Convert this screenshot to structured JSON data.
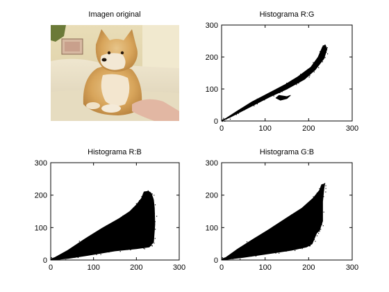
{
  "image_panel": {
    "title": "Imagen original"
  },
  "chart_data": [
    {
      "type": "scatter",
      "title": "Histograma R:G",
      "xlim": [
        0,
        300
      ],
      "ylim": [
        0,
        300
      ],
      "xticks": [
        0,
        100,
        200,
        300
      ],
      "yticks": [
        0,
        100,
        200,
        300
      ],
      "grid": false,
      "outline": [
        [
          0,
          0
        ],
        [
          20,
          12
        ],
        [
          60,
          40
        ],
        [
          110,
          75
        ],
        [
          150,
          100
        ],
        [
          190,
          130
        ],
        [
          215,
          160
        ],
        [
          235,
          195
        ],
        [
          242,
          225
        ],
        [
          238,
          238
        ],
        [
          232,
          232
        ],
        [
          222,
          200
        ],
        [
          205,
          168
        ],
        [
          175,
          138
        ],
        [
          145,
          113
        ],
        [
          110,
          88
        ],
        [
          70,
          60
        ],
        [
          35,
          30
        ],
        [
          10,
          8
        ],
        [
          0,
          2
        ]
      ],
      "cluster": [
        [
          132,
          80
        ],
        [
          150,
          76
        ],
        [
          158,
          80
        ],
        [
          150,
          70
        ],
        [
          135,
          65
        ],
        [
          125,
          72
        ]
      ]
    },
    {
      "type": "scatter",
      "title": "Histograma R:B",
      "xlim": [
        0,
        300
      ],
      "ylim": [
        0,
        300
      ],
      "xticks": [
        0,
        100,
        200,
        300
      ],
      "yticks": [
        0,
        100,
        200,
        300
      ],
      "grid": false,
      "outline": [
        [
          0,
          0
        ],
        [
          40,
          5
        ],
        [
          90,
          15
        ],
        [
          150,
          28
        ],
        [
          200,
          35
        ],
        [
          230,
          40
        ],
        [
          240,
          55
        ],
        [
          243,
          110
        ],
        [
          242,
          160
        ],
        [
          240,
          185
        ],
        [
          235,
          205
        ],
        [
          228,
          212
        ],
        [
          218,
          210
        ],
        [
          212,
          190
        ],
        [
          200,
          170
        ],
        [
          185,
          150
        ],
        [
          160,
          128
        ],
        [
          120,
          98
        ],
        [
          80,
          65
        ],
        [
          40,
          30
        ],
        [
          10,
          8
        ],
        [
          0,
          3
        ]
      ]
    },
    {
      "type": "scatter",
      "title": "Histograma G:B",
      "xlim": [
        0,
        300
      ],
      "ylim": [
        0,
        300
      ],
      "xticks": [
        0,
        100,
        200,
        300
      ],
      "yticks": [
        0,
        100,
        200,
        300
      ],
      "grid": false,
      "outline": [
        [
          0,
          0
        ],
        [
          50,
          8
        ],
        [
          110,
          20
        ],
        [
          160,
          30
        ],
        [
          195,
          40
        ],
        [
          208,
          50
        ],
        [
          218,
          82
        ],
        [
          225,
          92
        ],
        [
          232,
          120
        ],
        [
          232,
          180
        ],
        [
          235,
          220
        ],
        [
          237,
          235
        ],
        [
          230,
          232
        ],
        [
          225,
          215
        ],
        [
          210,
          190
        ],
        [
          185,
          160
        ],
        [
          150,
          130
        ],
        [
          110,
          95
        ],
        [
          70,
          62
        ],
        [
          35,
          32
        ],
        [
          10,
          8
        ],
        [
          0,
          3
        ]
      ]
    }
  ]
}
